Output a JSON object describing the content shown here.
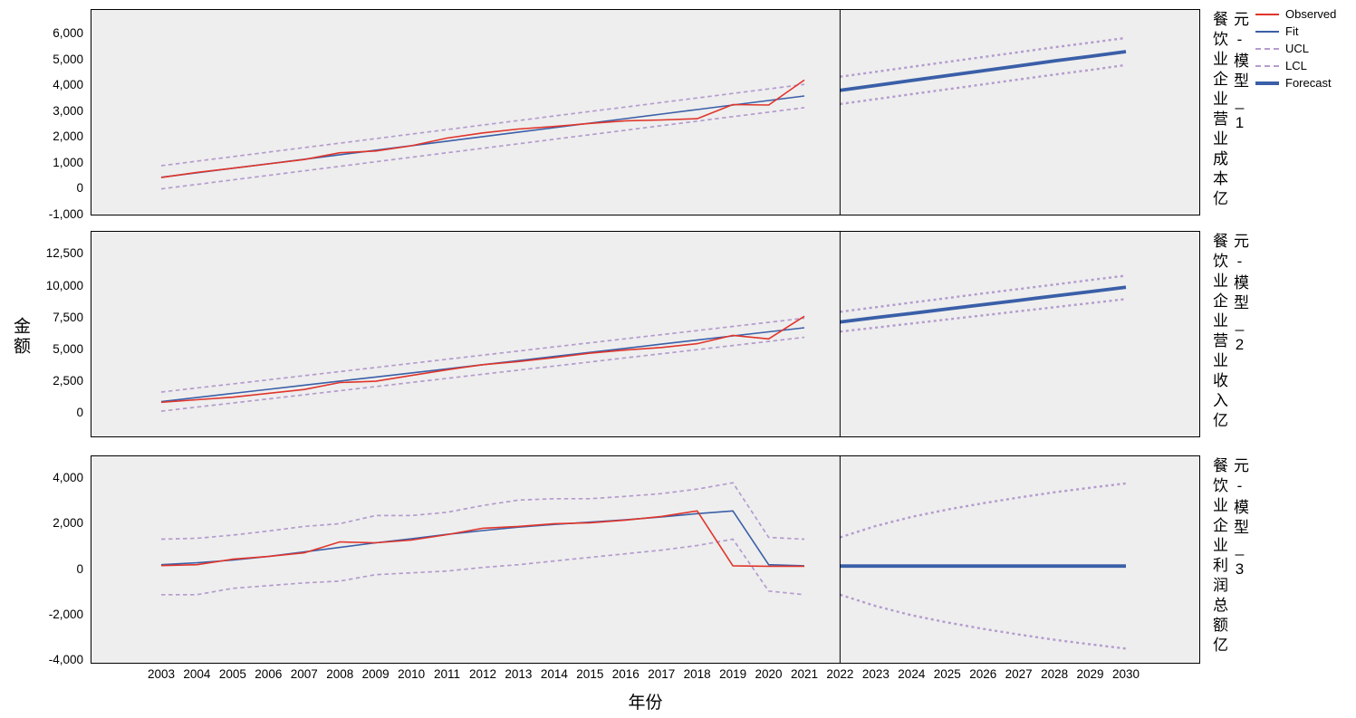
{
  "figure": {
    "x_axis_label": "年份",
    "y_axis_label": "金额",
    "panel_background": "#eeeeee"
  },
  "colors": {
    "observed": "#e0352b",
    "fit": "#3a5fa8",
    "interval": "#b49cce",
    "forecast": "#3a5fa8",
    "frame": "#000000"
  },
  "legend": {
    "items": [
      {
        "label": "Observed",
        "style": "solid",
        "color_key": "observed"
      },
      {
        "label": "Fit",
        "style": "solid",
        "color_key": "fit"
      },
      {
        "label": "UCL",
        "style": "dashed",
        "color_key": "interval"
      },
      {
        "label": "LCL",
        "style": "dashed",
        "color_key": "interval"
      },
      {
        "label": "Forecast",
        "style": "thick",
        "color_key": "forecast"
      }
    ]
  },
  "x": {
    "tick_labels": [
      "2003",
      "2004",
      "2005",
      "2006",
      "2007",
      "2008",
      "2009",
      "2010",
      "2011",
      "2012",
      "2013",
      "2014",
      "2015",
      "2016",
      "2017",
      "2018",
      "2019",
      "2020",
      "2021",
      "2022",
      "2023",
      "2024",
      "2025",
      "2026",
      "2027",
      "2028",
      "2029",
      "2030"
    ],
    "forecast_start_year": 2022
  },
  "chart_data": [
    {
      "type": "line",
      "title": "餐饮业企业营业成本亿元-模型_1",
      "strip_label_lines": [
        "餐饮业企业营业成本亿",
        "元-模型_1"
      ],
      "ylim": [
        -1050,
        6950
      ],
      "yticks": [
        -1000,
        0,
        1000,
        2000,
        3000,
        4000,
        5000,
        6000
      ],
      "ytick_labels": [
        "-1,000",
        "0",
        "1,000",
        "2,000",
        "3,000",
        "4,000",
        "5,000",
        "6,000"
      ],
      "x_observed": [
        2003,
        2004,
        2005,
        2006,
        2007,
        2008,
        2009,
        2010,
        2011,
        2012,
        2013,
        2014,
        2015,
        2016,
        2017,
        2018,
        2019,
        2020,
        2021
      ],
      "x_forecast": [
        2022,
        2023,
        2024,
        2025,
        2026,
        2027,
        2028,
        2029,
        2030
      ],
      "series": {
        "observed": [
          420,
          620,
          780,
          950,
          1120,
          1380,
          1450,
          1650,
          1950,
          2150,
          2300,
          2400,
          2520,
          2620,
          2650,
          2700,
          3250,
          3230,
          4200
        ],
        "fit": [
          430,
          605,
          780,
          955,
          1130,
          1305,
          1480,
          1655,
          1830,
          2005,
          2180,
          2355,
          2530,
          2705,
          2880,
          3055,
          3230,
          3405,
          3580
        ],
        "ucl": [
          880,
          1055,
          1230,
          1405,
          1580,
          1755,
          1930,
          2105,
          2280,
          2455,
          2630,
          2805,
          2980,
          3155,
          3330,
          3505,
          3680,
          3855,
          4030
        ],
        "lcl": [
          -20,
          155,
          330,
          505,
          680,
          855,
          1030,
          1205,
          1380,
          1555,
          1730,
          1905,
          2080,
          2255,
          2430,
          2605,
          2780,
          2955,
          3130
        ],
        "forecast": [
          3800,
          3990,
          4180,
          4370,
          4560,
          4750,
          4940,
          5120,
          5300
        ],
        "forecast_ucl": [
          4330,
          4520,
          4710,
          4900,
          5090,
          5280,
          5470,
          5650,
          5830
        ],
        "forecast_lcl": [
          3270,
          3460,
          3650,
          3840,
          4030,
          4220,
          4410,
          4590,
          4780
        ]
      }
    },
    {
      "type": "line",
      "title": "餐饮业企业营业收入亿元-模型_2",
      "strip_label_lines": [
        "餐饮业企业营业收入亿",
        "元-模型_2"
      ],
      "ylim": [
        -1900,
        14300
      ],
      "yticks": [
        0,
        2500,
        5000,
        7500,
        10000,
        12500
      ],
      "ytick_labels": [
        "0",
        "2,500",
        "5,000",
        "7,500",
        "10,000",
        "12,500"
      ],
      "x_observed": [
        2003,
        2004,
        2005,
        2006,
        2007,
        2008,
        2009,
        2010,
        2011,
        2012,
        2013,
        2014,
        2015,
        2016,
        2017,
        2018,
        2019,
        2020,
        2021
      ],
      "x_forecast": [
        2022,
        2023,
        2024,
        2025,
        2026,
        2027,
        2028,
        2029,
        2030
      ],
      "series": {
        "observed": [
          850,
          1050,
          1250,
          1550,
          1850,
          2400,
          2500,
          2950,
          3400,
          3800,
          4050,
          4350,
          4700,
          4950,
          5150,
          5450,
          6100,
          5820,
          7600
        ],
        "fit": [
          900,
          1220,
          1545,
          1865,
          2190,
          2510,
          2830,
          3155,
          3475,
          3800,
          4120,
          4445,
          4765,
          5085,
          5410,
          5730,
          6055,
          6375,
          6700
        ],
        "ucl": [
          1650,
          1970,
          2295,
          2615,
          2940,
          3260,
          3580,
          3905,
          4225,
          4550,
          4870,
          5195,
          5515,
          5835,
          6160,
          6480,
          6805,
          7125,
          7450
        ],
        "lcl": [
          150,
          470,
          795,
          1115,
          1440,
          1760,
          2080,
          2405,
          2725,
          3050,
          3370,
          3695,
          4015,
          4335,
          4660,
          4980,
          5305,
          5625,
          5950
        ],
        "forecast": [
          7150,
          7490,
          7830,
          8170,
          8510,
          8850,
          9190,
          9530,
          9870
        ],
        "forecast_ucl": [
          7950,
          8310,
          8670,
          9030,
          9390,
          9740,
          10090,
          10440,
          10790
        ],
        "forecast_lcl": [
          6390,
          6710,
          7030,
          7350,
          7670,
          7990,
          8310,
          8630,
          8950
        ]
      }
    },
    {
      "type": "line",
      "title": "餐饮业企业利润总额亿元-模型_3",
      "strip_label_lines": [
        "餐饮业企业利润总额亿",
        "元-模型_3"
      ],
      "ylim": [
        -4150,
        5000
      ],
      "yticks": [
        -4000,
        -2000,
        0,
        2000,
        4000
      ],
      "ytick_labels": [
        "-4,000",
        "-2,000",
        "0",
        "2,000",
        "4,000"
      ],
      "x_observed": [
        2003,
        2004,
        2005,
        2006,
        2007,
        2008,
        2009,
        2010,
        2011,
        2012,
        2013,
        2014,
        2015,
        2016,
        2017,
        2018,
        2019,
        2020,
        2021
      ],
      "x_forecast": [
        2022,
        2023,
        2024,
        2025,
        2026,
        2027,
        2028,
        2029,
        2030
      ],
      "series": {
        "observed": [
          160,
          200,
          440,
          560,
          720,
          1200,
          1160,
          1280,
          1520,
          1800,
          1880,
          2000,
          2040,
          2160,
          2320,
          2560,
          150,
          130,
          130
        ],
        "fit": [
          200,
          280,
          400,
          560,
          760,
          960,
          1160,
          1340,
          1530,
          1700,
          1850,
          1970,
          2070,
          2170,
          2300,
          2440,
          2560,
          200,
          150
        ],
        "ucl": [
          1320,
          1360,
          1500,
          1680,
          1880,
          2000,
          2360,
          2360,
          2500,
          2800,
          3040,
          3100,
          3100,
          3200,
          3320,
          3520,
          3800,
          1400,
          1320
        ],
        "lcl": [
          -1120,
          -1120,
          -840,
          -720,
          -600,
          -520,
          -240,
          -160,
          -80,
          80,
          200,
          360,
          520,
          680,
          840,
          1040,
          1320,
          -960,
          -1120
        ],
        "forecast": [
          140,
          140,
          140,
          140,
          140,
          140,
          140,
          140,
          140
        ],
        "forecast_ucl": [
          1400,
          1900,
          2300,
          2620,
          2900,
          3150,
          3380,
          3580,
          3770
        ],
        "forecast_lcl": [
          -1120,
          -1620,
          -2020,
          -2340,
          -2620,
          -2870,
          -3100,
          -3300,
          -3490
        ]
      }
    }
  ]
}
